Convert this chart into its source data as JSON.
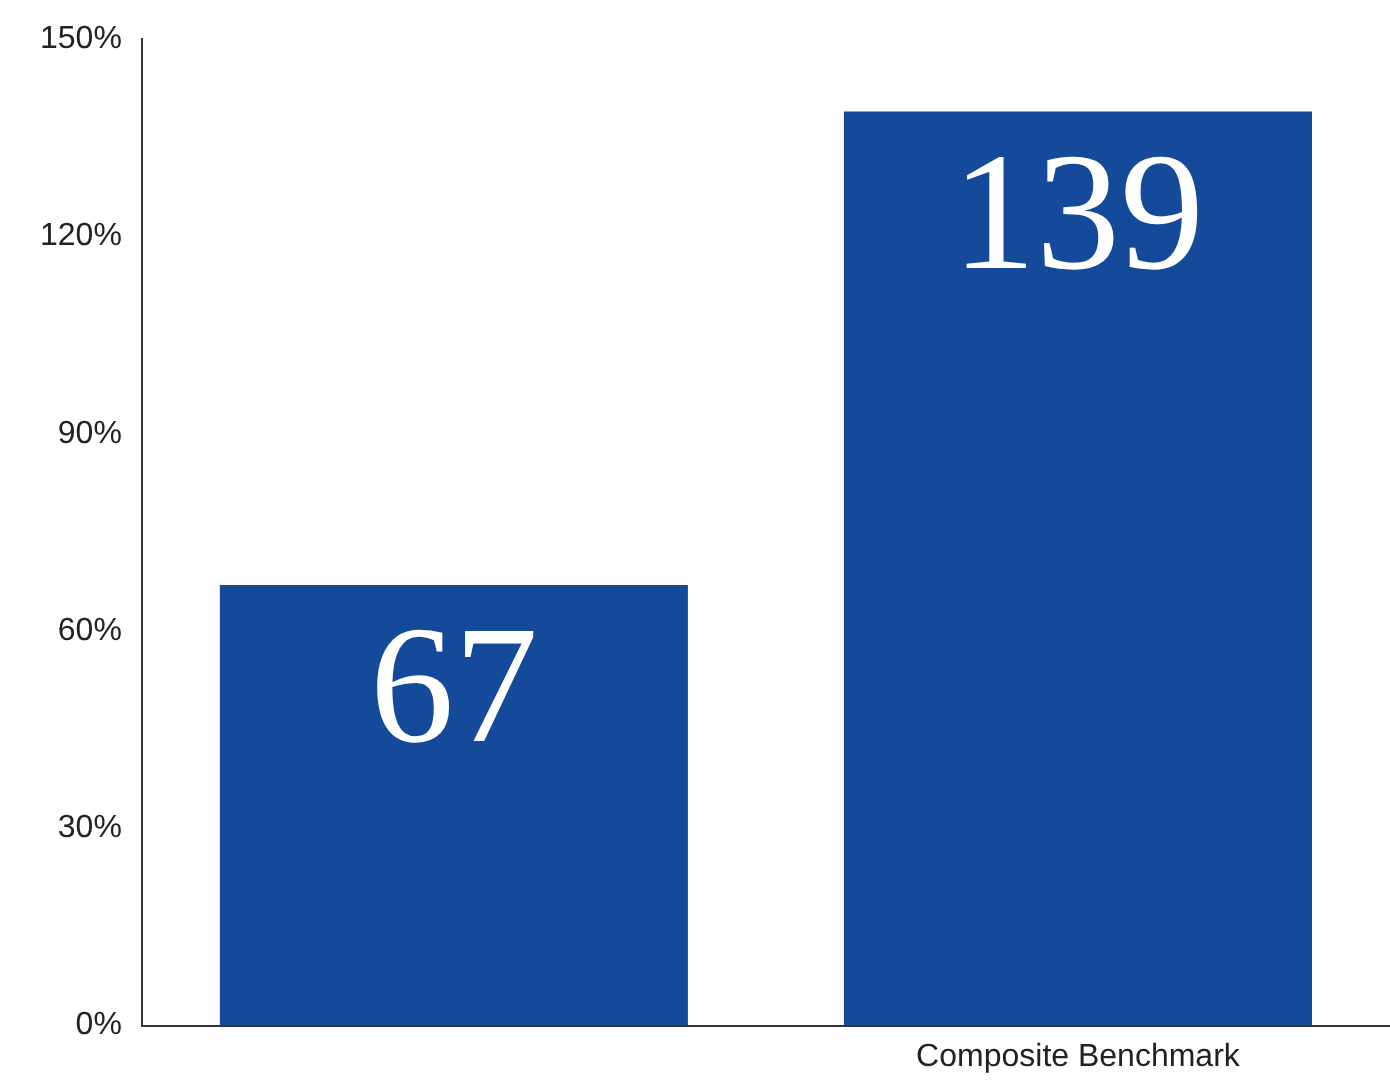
{
  "chart_data": {
    "type": "bar",
    "categories": [
      null,
      "Composite Benchmark"
    ],
    "values": [
      67,
      139
    ],
    "color": "#154a9a",
    "ylim": [
      0,
      150
    ],
    "yticks": [
      {
        "value": 0,
        "label": "0%"
      },
      {
        "value": 30,
        "label": "30%"
      },
      {
        "value": 60,
        "label": "60%"
      },
      {
        "value": 90,
        "label": "90%"
      },
      {
        "value": 120,
        "label": "120%"
      },
      {
        "value": 150,
        "label": "150%"
      }
    ],
    "grid": false,
    "legend": false,
    "data_labels": true
  }
}
